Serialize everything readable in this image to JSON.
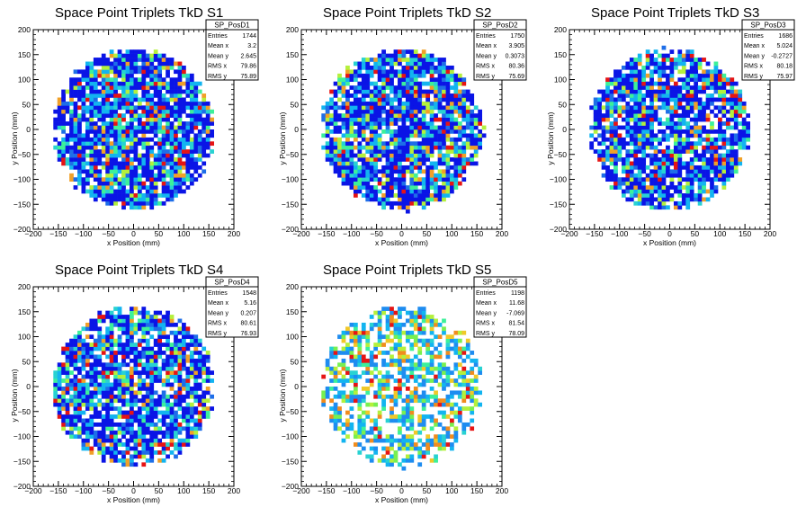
{
  "chart_data": [
    {
      "type": "heatmap",
      "title": "Space Point Triplets TkD S1",
      "xlabel": "x Position (mm)",
      "ylabel": "y Position (mm)",
      "xlim": [
        -200,
        200
      ],
      "ylim": [
        -200,
        200
      ],
      "xticks": [
        "−200",
        "−150",
        "−100",
        "−50",
        "0",
        "50",
        "100",
        "150",
        "200"
      ],
      "yticks": [
        "−200",
        "−150",
        "−100",
        "−50",
        "0",
        "50",
        "100",
        "150",
        "200"
      ],
      "footprint_radius": 160,
      "fill_density": 0.85,
      "density_class": "dense",
      "stats": {
        "name": "SP_PosD1",
        "rows": [
          {
            "label": "Entries",
            "value": "1744"
          },
          {
            "label": "Mean x",
            "value": "3.2"
          },
          {
            "label": "Mean y",
            "value": "2.645"
          },
          {
            "label": "RMS x",
            "value": "79.86"
          },
          {
            "label": "RMS y",
            "value": "75.89"
          }
        ]
      }
    },
    {
      "type": "heatmap",
      "title": "Space Point Triplets TkD S2",
      "xlabel": "x Position (mm)",
      "ylabel": "y Position (mm)",
      "xlim": [
        -200,
        200
      ],
      "ylim": [
        -200,
        200
      ],
      "xticks": [
        "−200",
        "−150",
        "−100",
        "−50",
        "0",
        "50",
        "100",
        "150",
        "200"
      ],
      "yticks": [
        "−200",
        "−150",
        "−100",
        "−50",
        "0",
        "50",
        "100",
        "150",
        "200"
      ],
      "footprint_radius": 160,
      "fill_density": 0.85,
      "density_class": "dense",
      "stats": {
        "name": "SP_PosD2",
        "rows": [
          {
            "label": "Entries",
            "value": "1750"
          },
          {
            "label": "Mean x",
            "value": "3.905"
          },
          {
            "label": "Mean y",
            "value": "0.3073"
          },
          {
            "label": "RMS x",
            "value": "80.36"
          },
          {
            "label": "RMS y",
            "value": "75.69"
          }
        ]
      }
    },
    {
      "type": "heatmap",
      "title": "Space Point Triplets TkD S3",
      "xlabel": "x Position (mm)",
      "ylabel": "y Position (mm)",
      "xlim": [
        -200,
        200
      ],
      "ylim": [
        -200,
        200
      ],
      "xticks": [
        "−200",
        "−150",
        "−100",
        "−50",
        "0",
        "50",
        "100",
        "150",
        "200"
      ],
      "yticks": [
        "−200",
        "−150",
        "−100",
        "−50",
        "0",
        "50",
        "100",
        "150",
        "200"
      ],
      "footprint_radius": 160,
      "fill_density": 0.82,
      "density_class": "dense",
      "stats": {
        "name": "SP_PosD3",
        "rows": [
          {
            "label": "Entries",
            "value": "1686"
          },
          {
            "label": "Mean x",
            "value": "5.024"
          },
          {
            "label": "Mean y",
            "value": "-0.2727"
          },
          {
            "label": "RMS x",
            "value": "80.18"
          },
          {
            "label": "RMS y",
            "value": "75.97"
          }
        ]
      }
    },
    {
      "type": "heatmap",
      "title": "Space Point Triplets TkD S4",
      "xlabel": "x Position (mm)",
      "ylabel": "y Position (mm)",
      "xlim": [
        -200,
        200
      ],
      "ylim": [
        -200,
        200
      ],
      "xticks": [
        "−200",
        "−150",
        "−100",
        "−50",
        "0",
        "50",
        "100",
        "150",
        "200"
      ],
      "yticks": [
        "−200",
        "−150",
        "−100",
        "−50",
        "0",
        "50",
        "100",
        "150",
        "200"
      ],
      "footprint_radius": 160,
      "fill_density": 0.8,
      "density_class": "dense",
      "stats": {
        "name": "SP_PosD4",
        "rows": [
          {
            "label": "Entries",
            "value": "1548"
          },
          {
            "label": "Mean x",
            "value": "5.16"
          },
          {
            "label": "Mean y",
            "value": "0.207"
          },
          {
            "label": "RMS x",
            "value": "80.61"
          },
          {
            "label": "RMS y",
            "value": "76.93"
          }
        ]
      }
    },
    {
      "type": "heatmap",
      "title": "Space Point Triplets TkD S5",
      "xlabel": "x Position (mm)",
      "ylabel": "y Position (mm)",
      "xlim": [
        -200,
        200
      ],
      "ylim": [
        -200,
        200
      ],
      "xticks": [
        "−200",
        "−150",
        "−100",
        "−50",
        "0",
        "50",
        "100",
        "150",
        "200"
      ],
      "yticks": [
        "−200",
        "−150",
        "−100",
        "−50",
        "0",
        "50",
        "100",
        "150",
        "200"
      ],
      "footprint_radius": 160,
      "fill_density": 0.58,
      "density_class": "sparse",
      "stats": {
        "name": "SP_PosD5",
        "rows": [
          {
            "label": "Entries",
            "value": "1198"
          },
          {
            "label": "Mean x",
            "value": "11.68"
          },
          {
            "label": "Mean y",
            "value": "-7.069"
          },
          {
            "label": "RMS x",
            "value": "81.54"
          },
          {
            "label": "RMS y",
            "value": "78.09"
          }
        ]
      }
    }
  ],
  "colors": {
    "palette_dense": [
      "#0a14e6",
      "#0a14e6",
      "#0a14e6",
      "#1e6ee8",
      "#12b4f0",
      "#12b4f0",
      "#28d2d2",
      "#3cf09a",
      "#b4f03c",
      "#f0a028",
      "#e61414"
    ],
    "palette_sparse": [
      "#1e8cf0",
      "#1e8cf0",
      "#12b4f0",
      "#12b4f0",
      "#28d2d2",
      "#3cf09a",
      "#78f050",
      "#b4f03c",
      "#f0c828",
      "#f08c1e",
      "#e61414"
    ],
    "axis": "#000000",
    "background": "#ffffff"
  }
}
